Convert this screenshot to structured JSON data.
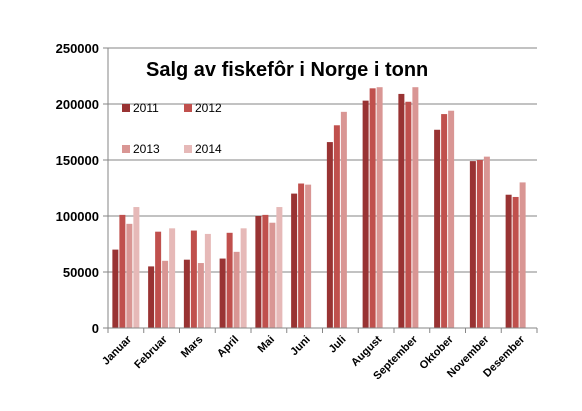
{
  "chart_data": {
    "type": "bar",
    "title": "Salg av fiskefôr i Norge i tonn",
    "xlabel": "",
    "ylabel": "",
    "ylim": [
      0,
      250000
    ],
    "yticks": [
      "0",
      "50000",
      "100000",
      "150000",
      "200000",
      "250000"
    ],
    "grid": true,
    "legend_position": "top-left, inside plot, 2x2",
    "categories": [
      "Januar",
      "Februar",
      "Mars",
      "April",
      "Mai",
      "Juni",
      "Juli",
      "August",
      "September",
      "Oktober",
      "November",
      "Desember"
    ],
    "series": [
      {
        "name": "2011",
        "color": "#993333",
        "values": [
          70000,
          55000,
          61000,
          62000,
          100000,
          120000,
          166000,
          203000,
          209000,
          177000,
          149000,
          119000
        ]
      },
      {
        "name": "2012",
        "color": "#c0504d",
        "values": [
          101000,
          86000,
          87000,
          85000,
          101000,
          129000,
          181000,
          214000,
          202000,
          191000,
          150000,
          117000
        ]
      },
      {
        "name": "2013",
        "color": "#d99694",
        "values": [
          93000,
          60000,
          58000,
          68000,
          94000,
          128000,
          193000,
          215000,
          215000,
          194000,
          153000,
          130000
        ]
      },
      {
        "name": "2014",
        "color": "#e6b9b8",
        "values": [
          108000,
          89000,
          84000,
          89000,
          108000,
          null,
          null,
          null,
          null,
          null,
          null,
          null
        ]
      }
    ]
  }
}
